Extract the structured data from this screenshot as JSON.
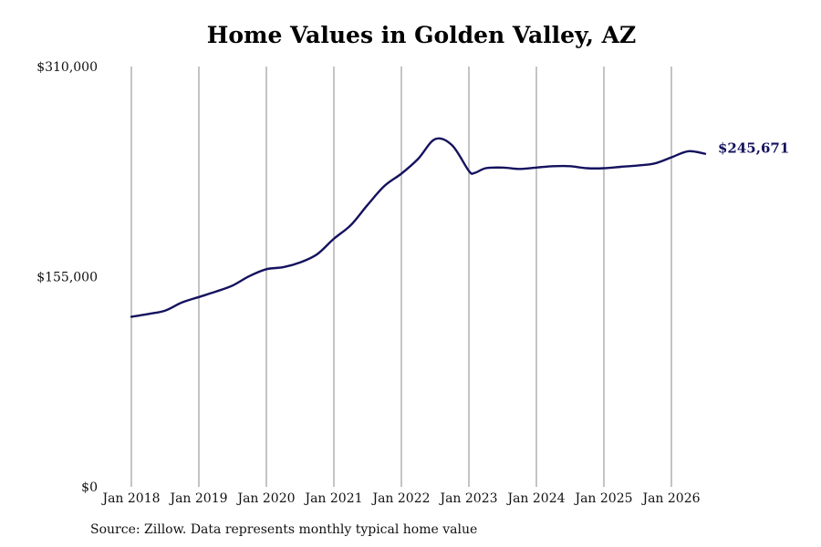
{
  "chart_data": {
    "type": "line",
    "title": "Home Values in Golden Valley, AZ",
    "xlabel": "",
    "ylabel": "",
    "ylim": [
      0,
      310000
    ],
    "y_ticks": [
      "$0",
      "$155,000",
      "$310,000"
    ],
    "y_tick_values": [
      0,
      155000,
      310000
    ],
    "x_ticks": [
      "Jan 2018",
      "Jan 2019",
      "Jan 2020",
      "Jan 2021",
      "Jan 2022",
      "Jan 2023",
      "Jan 2024",
      "Jan 2025",
      "Jan 2026"
    ],
    "grid": "vertical",
    "line_color": "#14125e",
    "end_label": "$245,671",
    "series": [
      {
        "x": [
          "2018-01",
          "2018-04",
          "2018-07",
          "2018-10",
          "2019-01",
          "2019-04",
          "2019-07",
          "2019-10",
          "2020-01",
          "2020-04",
          "2020-07",
          "2020-10",
          "2021-01",
          "2021-04",
          "2021-07",
          "2021-10",
          "2022-01",
          "2022-04",
          "2022-07",
          "2022-10",
          "2023-01",
          "2023-02",
          "2023-04",
          "2023-07",
          "2023-10",
          "2024-01",
          "2024-04",
          "2024-07",
          "2024-10",
          "2025-01",
          "2025-04",
          "2025-07",
          "2025-10",
          "2026-01",
          "2026-04",
          "2026-07"
        ],
        "values": [
          125500,
          127500,
          130000,
          136000,
          140000,
          144000,
          148500,
          155500,
          160500,
          162000,
          165500,
          171500,
          183000,
          193000,
          208000,
          222000,
          231000,
          242000,
          256500,
          252000,
          233000,
          231500,
          235000,
          235500,
          234500,
          235500,
          236500,
          236500,
          235000,
          235000,
          236000,
          237000,
          238500,
          243000,
          247500,
          245671
        ]
      }
    ]
  },
  "source_note": "Source: Zillow. Data represents monthly typical home value"
}
